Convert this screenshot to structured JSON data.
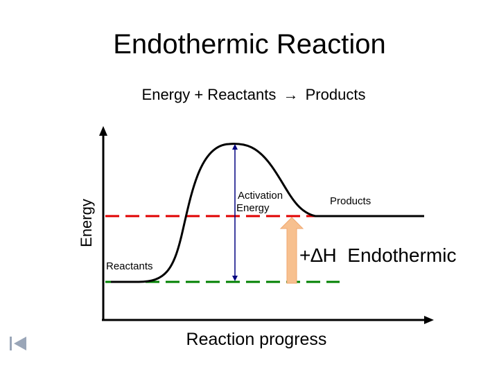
{
  "title": "Endothermic Reaction",
  "equation": {
    "left": "Energy  +  Reactants",
    "arrow": "→",
    "right": "Products"
  },
  "diagram": {
    "y_axis_label": "Energy",
    "x_axis_label": "Reaction progress",
    "reactants_label": "Reactants",
    "products_label": "Products",
    "activation_label_line1": "Activation",
    "activation_label_line2": "Energy",
    "delta_h_label": "+∆H  Endothermic",
    "colors": {
      "curve": "#000000",
      "products_level": "#e00000",
      "reactants_level": "#008000",
      "activation_arrow": "#000080",
      "delta_h_arrow": "#f7c08f"
    }
  },
  "nav": {
    "icon": "skip-to-start-icon"
  }
}
